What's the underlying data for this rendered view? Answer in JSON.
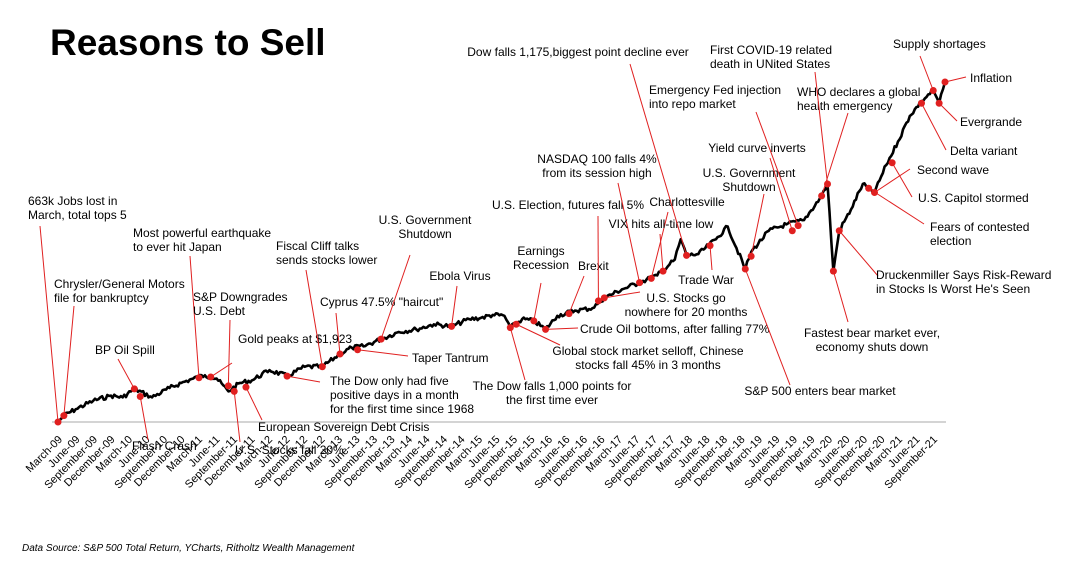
{
  "title": "Reasons to Sell",
  "source": "Data Source: S&P 500 Total Return, YCharts, Ritholtz Wealth Management",
  "chart_data": {
    "type": "line",
    "title": "Reasons to Sell",
    "xlabel": "",
    "ylabel": "",
    "legend": "none",
    "grid": false,
    "line_color": "#000000",
    "marker_color": "#e02020",
    "x_ticks": [
      "March-09",
      "June-09",
      "September-09",
      "December-09",
      "March-10",
      "June-10",
      "September-10",
      "December-10",
      "March-11",
      "June-11",
      "September-11",
      "December-11",
      "March-12",
      "June-12",
      "September-12",
      "December-12",
      "March-13",
      "June-13",
      "September-13",
      "December-13",
      "March-14",
      "June-14",
      "September-14",
      "December-14",
      "March-15",
      "June-15",
      "September-15",
      "December-15",
      "March-16",
      "June-16",
      "September-16",
      "December-16",
      "March-17",
      "June-17",
      "September-17",
      "December-17",
      "March-18",
      "June-18",
      "September-18",
      "December-18",
      "March-19",
      "June-19",
      "September-19",
      "December-19",
      "March-20",
      "June-20",
      "September-20",
      "December-20",
      "March-21",
      "June-21",
      "September-21"
    ],
    "series": [
      {
        "x": [
          "2009-03",
          "2009-04",
          "2009-06",
          "2009-09",
          "2009-12",
          "2010-02",
          "2010-04",
          "2010-07",
          "2010-10",
          "2010-12",
          "2011-02",
          "2011-04",
          "2011-06",
          "2011-08",
          "2011-10",
          "2011-12",
          "2012-03",
          "2012-06",
          "2012-09",
          "2012-12",
          "2013-03",
          "2013-05",
          "2013-07",
          "2013-10",
          "2014-01",
          "2014-04",
          "2014-07",
          "2014-10",
          "2015-01",
          "2015-03",
          "2015-05",
          "2015-07",
          "2015-08",
          "2015-10",
          "2015-12",
          "2016-02",
          "2016-04",
          "2016-07",
          "2016-10",
          "2016-12",
          "2017-03",
          "2017-06",
          "2017-09",
          "2017-12",
          "2018-01",
          "2018-02",
          "2018-04",
          "2018-07",
          "2018-09",
          "2018-12",
          "2019-01",
          "2019-04",
          "2019-07",
          "2019-10",
          "2020-01",
          "2020-02",
          "2020-03",
          "2020-04",
          "2020-06",
          "2020-08",
          "2020-10",
          "2020-12",
          "2021-02",
          "2021-04",
          "2021-06",
          "2021-08",
          "2021-09",
          "2021-10"
        ],
        "values": [
          1.0,
          1.15,
          1.3,
          1.5,
          1.62,
          1.58,
          1.78,
          1.58,
          1.8,
          1.92,
          2.02,
          2.1,
          2.02,
          1.72,
          1.92,
          1.98,
          2.22,
          2.08,
          2.3,
          2.3,
          2.6,
          2.75,
          2.78,
          2.95,
          3.12,
          3.18,
          3.3,
          3.25,
          3.42,
          3.45,
          3.52,
          3.5,
          3.22,
          3.42,
          3.38,
          3.18,
          3.5,
          3.62,
          3.68,
          3.92,
          4.12,
          4.28,
          4.45,
          4.82,
          5.3,
          4.92,
          4.95,
          5.3,
          5.6,
          4.6,
          5.0,
          5.5,
          5.65,
          5.75,
          6.32,
          6.6,
          4.55,
          5.5,
          6.0,
          6.6,
          6.4,
          7.05,
          7.6,
          8.2,
          8.55,
          8.8,
          8.5,
          9.0
        ]
      }
    ],
    "events": [
      {
        "date": "2009-03",
        "value": 1.0,
        "label": "663k Jobs lost in March, total tops 5"
      },
      {
        "date": "2009-04",
        "value": 1.15,
        "label": "Chrysler/General Motors file for bankruptcy"
      },
      {
        "date": "2010-04",
        "value": 1.78,
        "label": "BP Oil Spill"
      },
      {
        "date": "2010-05",
        "value": 1.6,
        "label": "Flash Crash"
      },
      {
        "date": "2011-03",
        "value": 2.04,
        "label": "Most powerful earthquake to ever hit Japan"
      },
      {
        "date": "2011-05",
        "value": 2.06,
        "label": "Gold peaks at $1,923"
      },
      {
        "date": "2011-08",
        "value": 1.85,
        "label": "S&P Downgrades U.S. Debt"
      },
      {
        "date": "2011-09",
        "value": 1.72,
        "label": "U.S. Stocks fall 20%"
      },
      {
        "date": "2011-11",
        "value": 1.82,
        "label": "European Sovereign Debt Crisis"
      },
      {
        "date": "2012-06",
        "value": 2.08,
        "label": "The Dow only had five positive days in a month for the first time since 1968"
      },
      {
        "date": "2012-12",
        "value": 2.3,
        "label": "Fiscal Cliff talks sends stocks lower"
      },
      {
        "date": "2013-03",
        "value": 2.6,
        "label": "Cyprus 47.5% \"haircut\""
      },
      {
        "date": "2013-06",
        "value": 2.7,
        "label": "Taper Tantrum"
      },
      {
        "date": "2013-10",
        "value": 2.95,
        "label": "U.S. Government Shutdown"
      },
      {
        "date": "2014-10",
        "value": 3.25,
        "label": "Ebola Virus"
      },
      {
        "date": "2015-08",
        "value": 3.22,
        "label": "The Dow falls 1,000 points for the first time ever"
      },
      {
        "date": "2015-09",
        "value": 3.3,
        "label": "Global stock market selloff, Chinese stocks fall 45% in 3 months"
      },
      {
        "date": "2015-12",
        "value": 3.38,
        "label": "Earnings Recession"
      },
      {
        "date": "2016-02",
        "value": 3.18,
        "label": "Crude Oil bottoms, after falling 77%"
      },
      {
        "date": "2016-06",
        "value": 3.55,
        "label": "Brexit"
      },
      {
        "date": "2016-11",
        "value": 3.85,
        "label": "U.S. Election, futures fall 5%"
      },
      {
        "date": "2016-12",
        "value": 3.92,
        "label": "U.S. Stocks go nowhere for 20 months"
      },
      {
        "date": "2017-06",
        "value": 4.28,
        "label": "NASDAQ 100 falls 4% from its session high"
      },
      {
        "date": "2017-08",
        "value": 4.38,
        "label": "Charlottesville"
      },
      {
        "date": "2017-10",
        "value": 4.55,
        "label": "VIX hits all-time low"
      },
      {
        "date": "2018-02",
        "value": 4.92,
        "label": "Dow falls 1,175,biggest point decline ever"
      },
      {
        "date": "2018-06",
        "value": 5.15,
        "label": "Trade War"
      },
      {
        "date": "2018-12",
        "value": 4.6,
        "label": "S&P 500 enters bear market"
      },
      {
        "date": "2019-01",
        "value": 4.9,
        "label": "U.S. Government Shutdown"
      },
      {
        "date": "2019-08",
        "value": 5.5,
        "label": "Yield curve inverts"
      },
      {
        "date": "2019-09",
        "value": 5.62,
        "label": "Emergency Fed injection into repo market"
      },
      {
        "date": "2020-01",
        "value": 6.32,
        "label": "WHO declares a global health emergency"
      },
      {
        "date": "2020-02",
        "value": 6.6,
        "label": "First COVID-19 related death in UNited States"
      },
      {
        "date": "2020-03",
        "value": 4.55,
        "label": "Fastest bear market ever, economy shuts down"
      },
      {
        "date": "2020-04",
        "value": 5.5,
        "label": "Druckenmiller Says Risk-Reward in Stocks Is Worst He's Seen"
      },
      {
        "date": "2020-09",
        "value": 6.5,
        "label": "Fears of contested election"
      },
      {
        "date": "2020-10",
        "value": 6.4,
        "label": "Second wave"
      },
      {
        "date": "2021-01",
        "value": 7.1,
        "label": "U.S. Capitol stormed"
      },
      {
        "date": "2021-06",
        "value": 8.5,
        "label": "Delta variant"
      },
      {
        "date": "2021-09",
        "value": 8.5,
        "label": "Evergrande"
      },
      {
        "date": "2021-08",
        "value": 8.8,
        "label": "Supply shortages"
      },
      {
        "date": "2021-10",
        "value": 9.0,
        "label": "Inflation"
      }
    ]
  }
}
